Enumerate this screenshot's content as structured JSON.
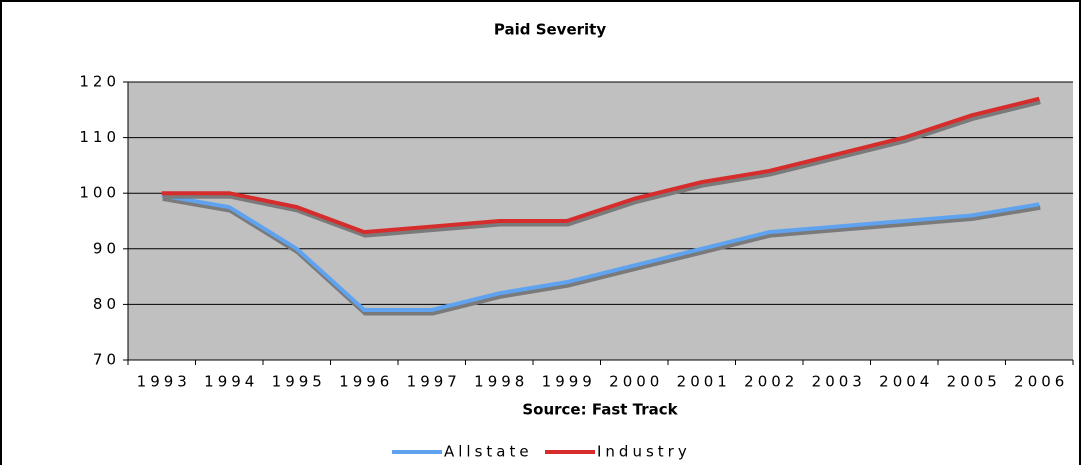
{
  "chart_data": {
    "type": "line",
    "title": "Paid Severity",
    "x_label": "Source: Fast Track",
    "categories": [
      "1993",
      "1994",
      "1995",
      "1996",
      "1997",
      "1998",
      "1999",
      "2000",
      "2001",
      "2002",
      "2003",
      "2004",
      "2005",
      "2006"
    ],
    "series": [
      {
        "name": "Allstate",
        "color": "#5fa3f0",
        "values": [
          99.6,
          97.5,
          90,
          79,
          79,
          82,
          84,
          87,
          90,
          93,
          94,
          95,
          96,
          98
        ]
      },
      {
        "name": "Industry",
        "color": "#d62c2c",
        "values": [
          100,
          100,
          97.5,
          93,
          94,
          95,
          95,
          99,
          102,
          104,
          107,
          110,
          114,
          117
        ]
      }
    ],
    "ylim": [
      70,
      120
    ],
    "yticks": [
      70,
      80,
      90,
      100,
      110,
      120
    ],
    "grid": true,
    "legend": "bottom"
  }
}
